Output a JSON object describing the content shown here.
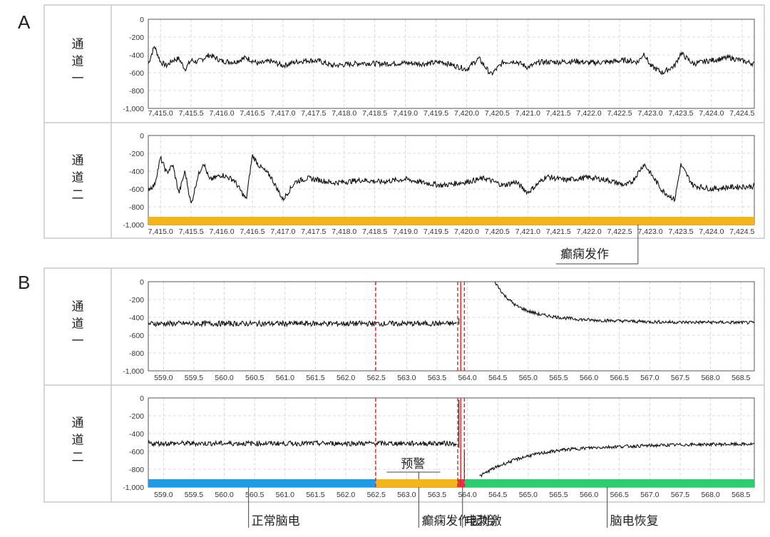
{
  "chart_data": [
    {
      "panel_label": "A",
      "type": "line",
      "channels": [
        {
          "name": "通道一",
          "xlim": [
            7414.8,
            7424.7
          ],
          "ylim": [
            -1000,
            0
          ],
          "y_ticks": [
            "0",
            "-200",
            "-400",
            "-600",
            "-800",
            "-1,000"
          ],
          "x_ticks": [
            "7,415.0",
            "7,415.5",
            "7,416.0",
            "7,416.5",
            "7,417.0",
            "7,417.5",
            "7,418.0",
            "7,418.5",
            "7,419.0",
            "7,419.5",
            "7,420.0",
            "7,420.5",
            "7,421.0",
            "7,421.5",
            "7,422.0",
            "7,422.5",
            "7,423.0",
            "7,423.5",
            "7,424.0",
            "7,424.5"
          ],
          "grid": true,
          "signal": {
            "x": [
              7414.8,
              7414.9,
              7415.0,
              7415.1,
              7415.2,
              7415.3,
              7415.4,
              7415.5,
              7415.6,
              7415.8,
              7416.0,
              7416.2,
              7416.4,
              7416.6,
              7416.8,
              7417.0,
              7417.2,
              7417.4,
              7417.6,
              7417.8,
              7418.0,
              7418.3,
              7418.6,
              7419.0,
              7419.3,
              7419.6,
              7420.0,
              7420.2,
              7420.4,
              7420.6,
              7420.8,
              7421.0,
              7421.2,
              7421.5,
              7421.8,
              7422.0,
              7422.3,
              7422.6,
              7422.8,
              7422.9,
              7423.0,
              7423.2,
              7423.4,
              7423.5,
              7423.7,
              7424.0,
              7424.3,
              7424.7
            ],
            "y": [
              -500,
              -300,
              -480,
              -520,
              -460,
              -440,
              -560,
              -460,
              -480,
              -400,
              -470,
              -480,
              -430,
              -500,
              -470,
              -520,
              -480,
              -460,
              -470,
              -520,
              -510,
              -490,
              -500,
              -490,
              -500,
              -480,
              -560,
              -440,
              -620,
              -480,
              -470,
              -540,
              -480,
              -480,
              -470,
              -490,
              -480,
              -460,
              -480,
              -380,
              -520,
              -600,
              -520,
              -380,
              -500,
              -460,
              -430,
              -500
            ]
          },
          "marker_bar": null
        },
        {
          "name": "通道二",
          "xlim": [
            7414.8,
            7424.7
          ],
          "ylim": [
            -1000,
            0
          ],
          "y_ticks": [
            "0",
            "-200",
            "-400",
            "-600",
            "-800",
            "-1,000"
          ],
          "x_ticks": [
            "7,415.0",
            "7,415.5",
            "7,416.0",
            "7,416.5",
            "7,417.0",
            "7,417.5",
            "7,418.0",
            "7,418.5",
            "7,419.0",
            "7,419.5",
            "7,420.0",
            "7,420.5",
            "7,421.0",
            "7,421.5",
            "7,422.0",
            "7,422.5",
            "7,423.0",
            "7,423.5",
            "7,424.0",
            "7,424.5"
          ],
          "grid": true,
          "signal": {
            "x": [
              7414.8,
              7414.9,
              7415.0,
              7415.1,
              7415.2,
              7415.3,
              7415.4,
              7415.5,
              7415.6,
              7415.7,
              7415.8,
              7416.0,
              7416.2,
              7416.4,
              7416.5,
              7416.6,
              7416.8,
              7417.0,
              7417.2,
              7417.4,
              7417.6,
              7417.8,
              7418.0,
              7418.3,
              7418.6,
              7419.0,
              7419.3,
              7419.6,
              7420.0,
              7420.3,
              7420.6,
              7420.8,
              7421.0,
              7421.3,
              7421.6,
              7422.0,
              7422.3,
              7422.6,
              7422.7,
              7422.9,
              7423.0,
              7423.2,
              7423.4,
              7423.5,
              7423.7,
              7424.0,
              7424.3,
              7424.7
            ],
            "y": [
              -600,
              -560,
              -250,
              -420,
              -330,
              -650,
              -400,
              -780,
              -480,
              -300,
              -500,
              -440,
              -500,
              -720,
              -220,
              -330,
              -460,
              -720,
              -520,
              -480,
              -500,
              -530,
              -520,
              -500,
              -520,
              -490,
              -530,
              -560,
              -520,
              -480,
              -560,
              -520,
              -640,
              -460,
              -500,
              -470,
              -500,
              -560,
              -520,
              -320,
              -420,
              -620,
              -720,
              -330,
              -560,
              -600,
              -580,
              -570
            ]
          },
          "marker_bar": {
            "x_from": 7414.8,
            "x_to": 7424.7,
            "color": "#f2b61c"
          }
        }
      ],
      "annotations": [
        {
          "text": "癫痫发作",
          "x": 7422.8
        }
      ]
    },
    {
      "panel_label": "B",
      "type": "line",
      "channels": [
        {
          "name": "通道一",
          "xlim": [
            558.75,
            568.72
          ],
          "ylim": [
            -1000,
            0
          ],
          "y_ticks": [
            "0",
            "-200",
            "-400",
            "-600",
            "-800",
            "-1,000"
          ],
          "x_ticks": [
            "559.0",
            "559.5",
            "560.0",
            "560.5",
            "561.0",
            "561.5",
            "562.0",
            "562.5",
            "563.0",
            "563.5",
            "564.0",
            "564.5",
            "565.0",
            "565.5",
            "566.0",
            "566.5",
            "567.0",
            "567.5",
            "568.0",
            "568.5"
          ],
          "grid": true,
          "segments": [
            {
              "x": [
                558.75,
                563.82
              ],
              "y": [
                -470,
                -470
              ],
              "noise": 30
            },
            {
              "spike": {
                "x": 563.86,
                "from": -480,
                "to": -410
              }
            },
            {
              "x": [
                564.45,
                564.6,
                564.8,
                565.0,
                565.2,
                565.5,
                565.8,
                566.0,
                566.5,
                567.0,
                567.5,
                568.0,
                568.72
              ],
              "y": [
                0,
                -150,
                -270,
                -330,
                -370,
                -400,
                -420,
                -430,
                -440,
                -450,
                -455,
                -455,
                -460
              ],
              "noise": 18
            }
          ],
          "dashed_lines": [
            562.49,
            563.84,
            563.95
          ],
          "solid_line": 563.89,
          "marker_bar": null
        },
        {
          "name": "通道二",
          "xlim": [
            558.75,
            568.72
          ],
          "ylim": [
            -1000,
            0
          ],
          "y_ticks": [
            "0",
            "-200",
            "-400",
            "-600",
            "-800",
            "-1,000"
          ],
          "x_ticks": [
            "559.0",
            "559.5",
            "560.0",
            "560.5",
            "561.0",
            "561.5",
            "562.0",
            "562.5",
            "563.0",
            "563.5",
            "564.0",
            "564.5",
            "565.0",
            "565.5",
            "566.0",
            "566.5",
            "567.0",
            "567.5",
            "568.0",
            "568.5"
          ],
          "grid": true,
          "segments": [
            {
              "x": [
                558.75,
                563.82
              ],
              "y": [
                -510,
                -510
              ],
              "noise": 28
            },
            {
              "spike": {
                "x": 563.86,
                "from": -560,
                "to": -20
              }
            },
            {
              "drop": {
                "x": 563.95,
                "from": -600,
                "to": -920
              }
            },
            {
              "x": [
                564.2,
                564.4,
                564.6,
                564.8,
                565.0,
                565.3,
                565.6,
                566.0,
                566.5,
                567.0,
                567.5,
                568.0,
                568.72
              ],
              "y": [
                -880,
                -800,
                -740,
                -690,
                -650,
                -610,
                -580,
                -560,
                -545,
                -535,
                -525,
                -520,
                -520
              ],
              "noise": 18
            }
          ],
          "dashed_lines": [
            562.49,
            563.84,
            563.95
          ],
          "solid_line": 563.89,
          "marker_bar": {
            "segments": [
              {
                "x_from": 558.75,
                "x_to": 562.49,
                "color": "#1e9be3"
              },
              {
                "x_from": 562.49,
                "x_to": 563.84,
                "color": "#f2b61c"
              },
              {
                "x_from": 563.84,
                "x_to": 563.95,
                "color": "#e8334a"
              },
              {
                "x_from": 563.95,
                "x_to": 568.72,
                "color": "#2ecc71"
              }
            ]
          }
        }
      ],
      "annotations": [
        {
          "text": "预警",
          "x": 563.2,
          "position": "above-bar"
        },
        {
          "text": "正常脑电",
          "x": 560.4,
          "position": "below"
        },
        {
          "text": "癫痫发作起始",
          "x": 563.2,
          "position": "below"
        },
        {
          "text": "电刺激",
          "x": 563.92,
          "position": "below"
        },
        {
          "text": "脑电恢复",
          "x": 566.3,
          "position": "below"
        }
      ]
    }
  ]
}
